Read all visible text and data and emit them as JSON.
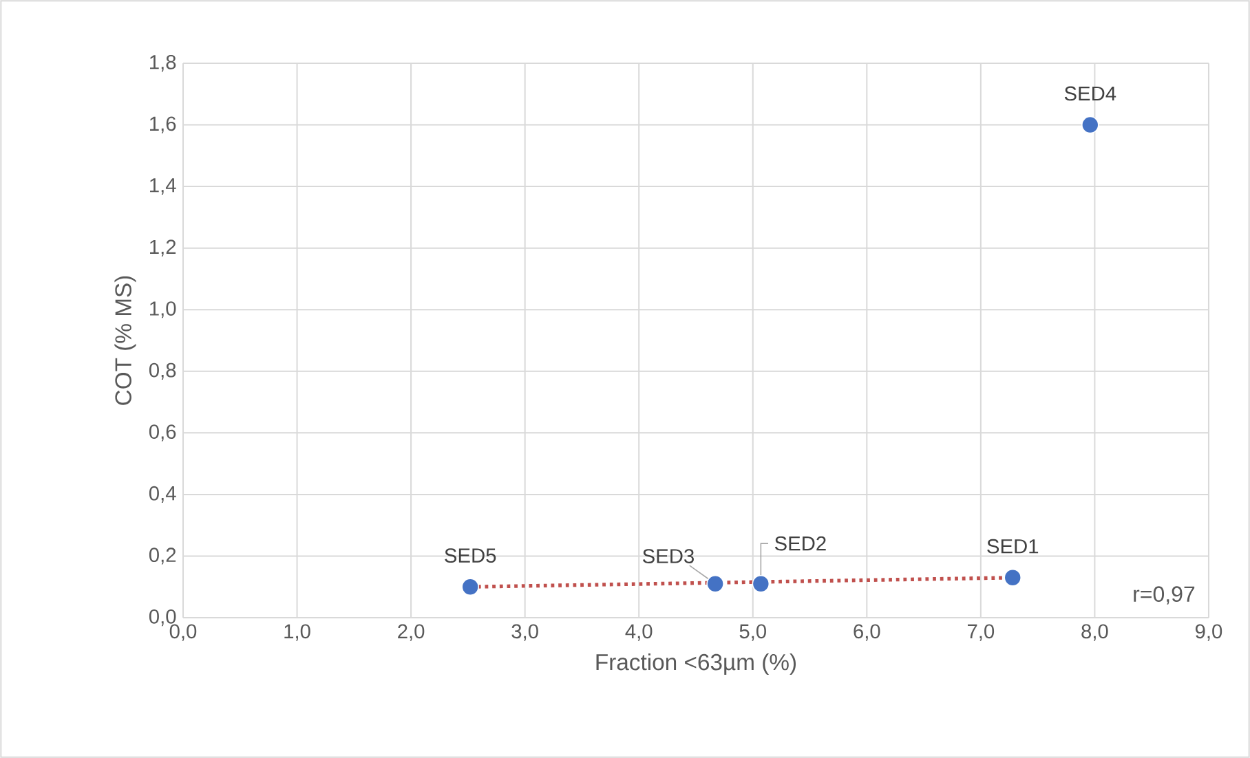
{
  "chart_data": {
    "type": "scatter",
    "xlabel": "Fraction <63µm (%)",
    "ylabel": "COT (% MS)",
    "series": [
      {
        "x": [
          7.28,
          5.07,
          4.67,
          7.96,
          2.52
        ],
        "values": [
          0.13,
          0.11,
          0.11,
          1.6,
          0.1
        ],
        "color": "#4472c4",
        "marker": "circle"
      },
      {
        "type": "line",
        "x": [
          2.52,
          7.28
        ],
        "values": [
          0.1,
          0.13
        ],
        "color": "#c0504d",
        "line_style": "dotted",
        "marker": "none"
      }
    ],
    "annotations": [
      {
        "text": "SED1",
        "x": 7.28,
        "y": 0.13
      },
      {
        "text": "SED2",
        "x": 5.07,
        "y": 0.11
      },
      {
        "text": "SED3",
        "x": 4.67,
        "y": 0.11
      },
      {
        "text": "SED4",
        "x": 7.96,
        "y": 1.6
      },
      {
        "text": "SED5",
        "x": 2.52,
        "y": 0.1
      },
      "r=0,97"
    ],
    "xlim": [
      0,
      9
    ],
    "ylim": [
      0,
      1.8
    ],
    "xticks": [
      {
        "value": 0,
        "label": "0,0"
      },
      {
        "value": 1,
        "label": "1,0"
      },
      {
        "value": 2,
        "label": "2,0"
      },
      {
        "value": 3,
        "label": "3,0"
      },
      {
        "value": 4,
        "label": "4,0"
      },
      {
        "value": 5,
        "label": "5,0"
      },
      {
        "value": 6,
        "label": "6,0"
      },
      {
        "value": 7,
        "label": "7,0"
      },
      {
        "value": 8,
        "label": "8,0"
      },
      {
        "value": 9,
        "label": "9,0"
      }
    ],
    "yticks": [
      {
        "value": 0,
        "label": "0,0"
      },
      {
        "value": 0.2,
        "label": "0,2"
      },
      {
        "value": 0.4,
        "label": "0,4"
      },
      {
        "value": 0.6,
        "label": "0,6"
      },
      {
        "value": 0.8,
        "label": "0,8"
      },
      {
        "value": 1.0,
        "label": "1,0"
      },
      {
        "value": 1.2,
        "label": "1,2"
      },
      {
        "value": 1.4,
        "label": "1,4"
      },
      {
        "value": 1.6,
        "label": "1,6"
      },
      {
        "value": 1.8,
        "label": "1,8"
      }
    ],
    "grid": true
  }
}
